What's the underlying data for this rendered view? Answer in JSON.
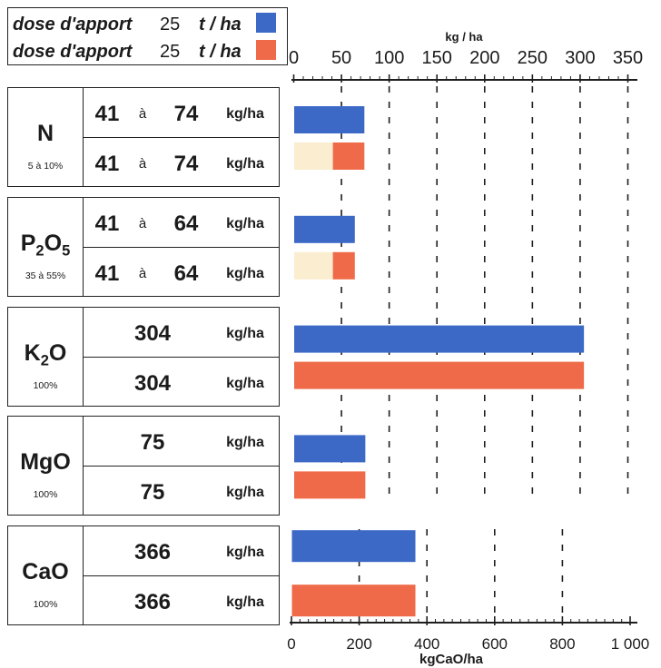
{
  "chart_data": {
    "type": "bar",
    "orientation": "horizontal",
    "legend": "top-left",
    "value_unit": "kg/ha",
    "range_word": "à",
    "axes": {
      "top": {
        "label": "kg / ha",
        "min": 0,
        "max": 350,
        "ticks": [
          0,
          50,
          100,
          150,
          200,
          250,
          300,
          350
        ],
        "tick_labels": [
          "0",
          "50",
          "100",
          "150",
          "200",
          "250",
          "300",
          "350"
        ],
        "grid": "dashed"
      },
      "bottom": {
        "label": "kgCaO/ha",
        "min": 0,
        "max": 1000,
        "ticks": [
          0,
          200,
          400,
          600,
          800,
          1000
        ],
        "tick_labels": [
          "0",
          "200",
          "400",
          "600",
          "800",
          "1 000"
        ],
        "grid": "dashed"
      }
    },
    "categories": [
      {
        "label": "N",
        "share": "5 à 10%",
        "axis": "top"
      },
      {
        "label": "P2O5",
        "share": "35 à 55%",
        "axis": "top"
      },
      {
        "label": "K2O",
        "share": "100%",
        "axis": "top"
      },
      {
        "label": "MgO",
        "share": "100%",
        "axis": "top"
      },
      {
        "label": "CaO",
        "share": "100%",
        "axis": "bottom"
      }
    ],
    "series": [
      {
        "label": "dose d'apport",
        "dose": 25,
        "dose_unit": "t / ha",
        "color": "#3c69c6",
        "values": [
          {
            "min": 41,
            "max": 74
          },
          {
            "min": 41,
            "max": 64
          },
          {
            "value": 304
          },
          {
            "value": 75
          },
          {
            "value": 366
          }
        ]
      },
      {
        "label": "dose d'apport",
        "dose": 25,
        "dose_unit": "t / ha",
        "color": "#ef6a48",
        "range_min_color": "#fbedcf",
        "values": [
          {
            "min": 41,
            "max": 74
          },
          {
            "min": 41,
            "max": 64
          },
          {
            "value": 304
          },
          {
            "value": 75
          },
          {
            "value": 366
          }
        ]
      }
    ]
  }
}
